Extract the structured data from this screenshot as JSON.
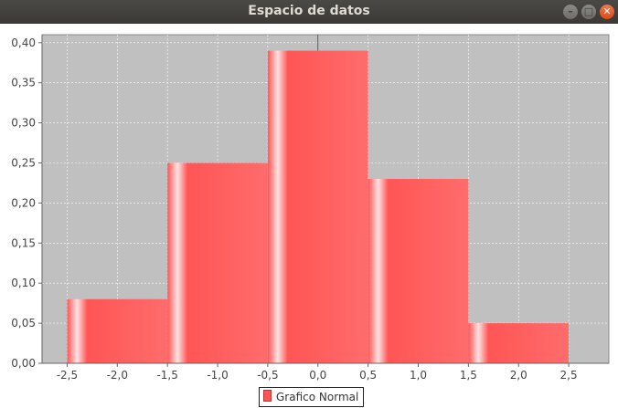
{
  "window": {
    "title": "Espacio de datos",
    "buttons": {
      "minimize": "–",
      "maximize": "□",
      "close": "✕"
    }
  },
  "chart_data": {
    "type": "bar",
    "series": [
      {
        "name": "Grafico Normal",
        "bins": [
          {
            "x0": -2.5,
            "x1": -1.5,
            "value": 0.08
          },
          {
            "x0": -1.5,
            "x1": -0.5,
            "value": 0.25
          },
          {
            "x0": -0.5,
            "x1": 0.5,
            "value": 0.39
          },
          {
            "x0": 0.5,
            "x1": 1.5,
            "value": 0.23
          },
          {
            "x0": 1.5,
            "x1": 2.5,
            "value": 0.05
          }
        ]
      }
    ],
    "xlim": [
      -2.75,
      2.9
    ],
    "ylim": [
      0,
      0.41
    ],
    "x_ticks": [
      "-2,5",
      "-2,0",
      "-1,5",
      "-1,0",
      "-0,5",
      "0,0",
      "0,5",
      "1,0",
      "1,5",
      "2,0",
      "2,5"
    ],
    "y_ticks": [
      "0,00",
      "0,05",
      "0,10",
      "0,15",
      "0,20",
      "0,25",
      "0,30",
      "0,35",
      "0,40"
    ],
    "grid": true,
    "legend_position": "bottom",
    "colors": {
      "bar": "#ff5555",
      "plot_bg": "#c0c0c0"
    }
  }
}
